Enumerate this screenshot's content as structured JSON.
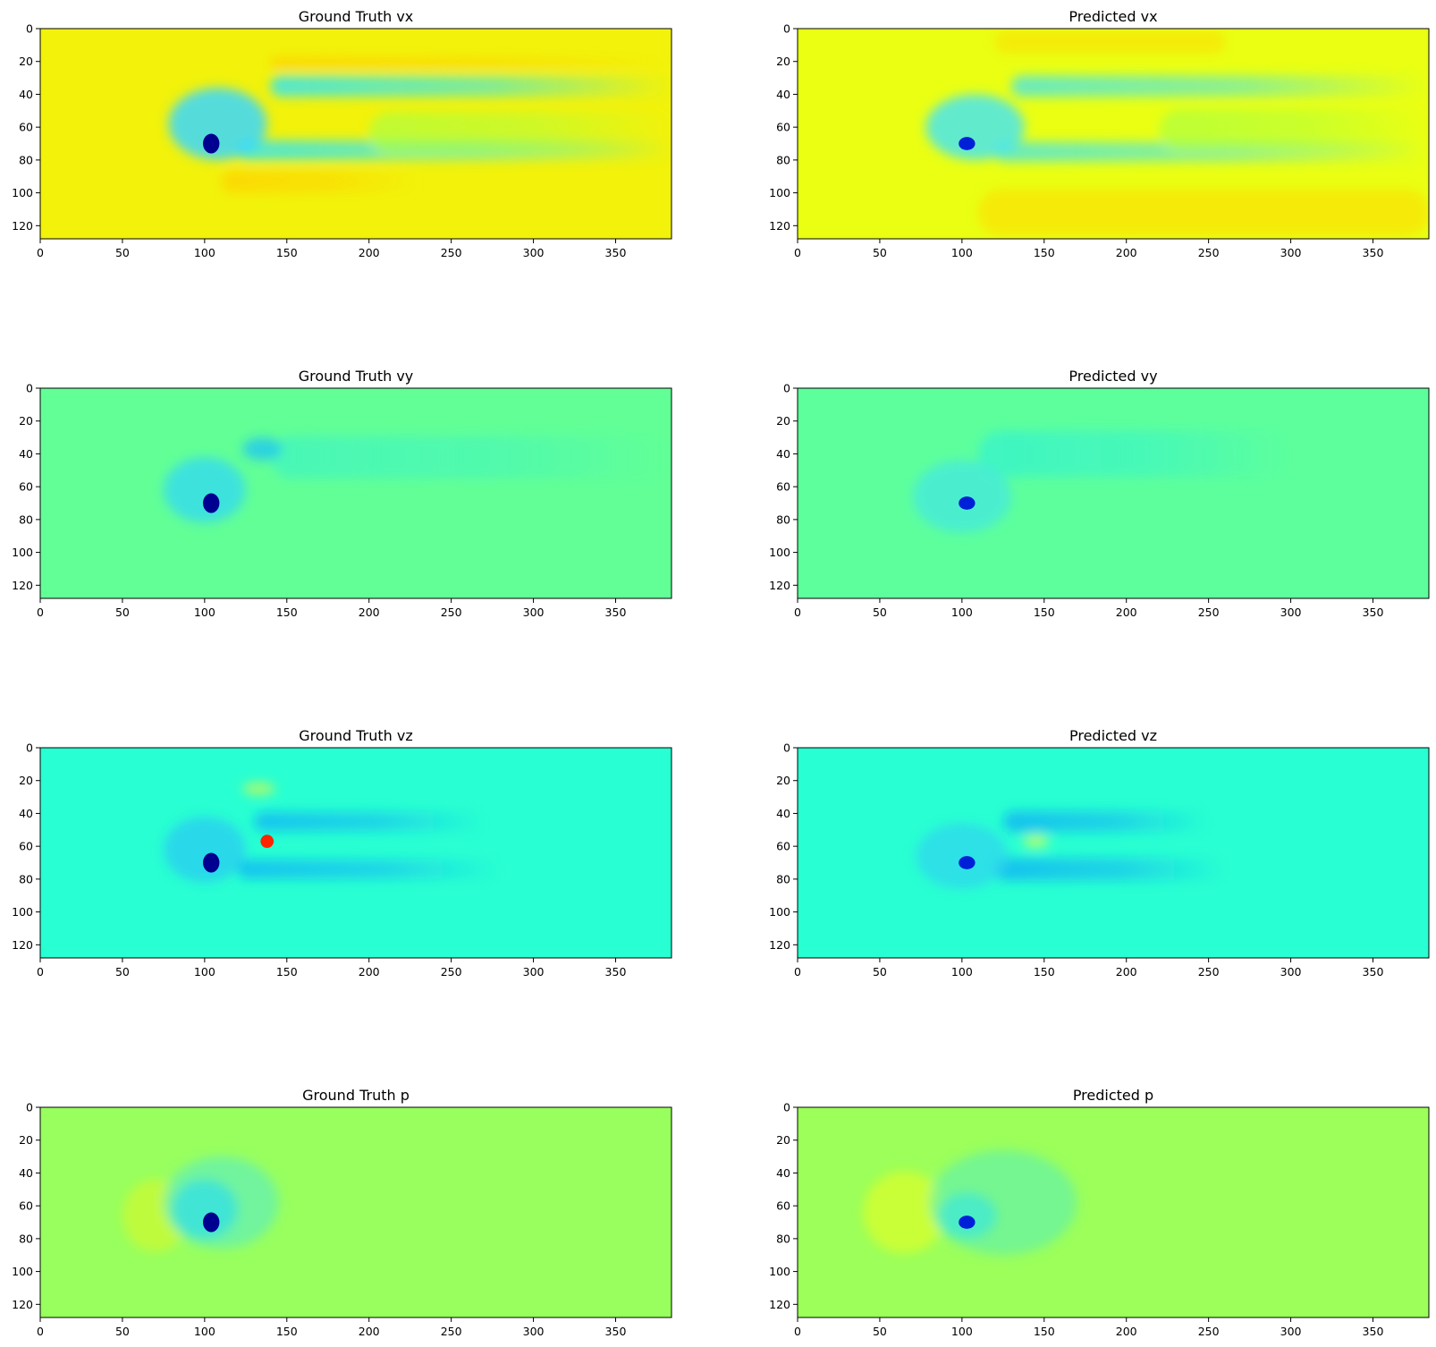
{
  "chart_data": [
    {
      "type": "heatmap",
      "title": "Ground Truth vx",
      "field": "vx",
      "source": "ground_truth",
      "xlim": [
        0,
        384
      ],
      "ylim": [
        128,
        0
      ],
      "xticks": [
        0,
        50,
        100,
        150,
        200,
        250,
        300,
        350
      ],
      "yticks": [
        0,
        20,
        40,
        60,
        80,
        100,
        120
      ],
      "colormap": "jet",
      "background_color": "#f2f20a",
      "features": [
        {
          "kind": "band",
          "x0": 140,
          "x1": 384,
          "y": 35,
          "h": 13,
          "color": "#36e6f0",
          "opacity": 0.85,
          "fade": true
        },
        {
          "kind": "band",
          "x0": 120,
          "x1": 384,
          "y": 74,
          "h": 12,
          "color": "#36e6f0",
          "opacity": 0.85,
          "fade": true
        },
        {
          "kind": "band",
          "x0": 140,
          "x1": 384,
          "y": 21,
          "h": 7,
          "color": "#ffd000",
          "opacity": 0.8,
          "fade": true
        },
        {
          "kind": "band",
          "x0": 110,
          "x1": 230,
          "y": 93,
          "h": 14,
          "color": "#ffd000",
          "opacity": 0.7,
          "fade": true
        },
        {
          "kind": "band",
          "x0": 200,
          "x1": 384,
          "y": 64,
          "h": 26,
          "color": "#aaff44",
          "opacity": 0.7,
          "fade": true
        },
        {
          "kind": "blob",
          "x": 108,
          "y": 58,
          "rx": 30,
          "ry": 22,
          "color": "#3ad8ff",
          "opacity": 0.85
        },
        {
          "kind": "blob",
          "x": 104,
          "y": 70,
          "rx": 5,
          "ry": 6,
          "color": "#000090",
          "opacity": 1
        }
      ]
    },
    {
      "type": "heatmap",
      "title": "Predicted vx",
      "field": "vx",
      "source": "predicted",
      "xlim": [
        0,
        384
      ],
      "ylim": [
        128,
        0
      ],
      "xticks": [
        0,
        50,
        100,
        150,
        200,
        250,
        300,
        350
      ],
      "yticks": [
        0,
        20,
        40,
        60,
        80,
        100,
        120
      ],
      "colormap": "jet",
      "background_color": "#eaff12",
      "features": [
        {
          "kind": "band",
          "x0": 130,
          "x1": 384,
          "y": 35,
          "h": 13,
          "color": "#4ae6e6",
          "opacity": 0.8,
          "fade": true
        },
        {
          "kind": "band",
          "x0": 120,
          "x1": 384,
          "y": 75,
          "h": 12,
          "color": "#4ae6e6",
          "opacity": 0.8,
          "fade": true
        },
        {
          "kind": "band",
          "x0": 110,
          "x1": 384,
          "y": 112,
          "h": 28,
          "color": "#ffd800",
          "opacity": 0.55,
          "fade": false
        },
        {
          "kind": "band",
          "x0": 120,
          "x1": 260,
          "y": 8,
          "h": 14,
          "color": "#ffd800",
          "opacity": 0.5,
          "fade": false
        },
        {
          "kind": "band",
          "x0": 220,
          "x1": 384,
          "y": 62,
          "h": 26,
          "color": "#aaff44",
          "opacity": 0.7,
          "fade": true
        },
        {
          "kind": "blob",
          "x": 108,
          "y": 60,
          "rx": 30,
          "ry": 20,
          "color": "#4ae6ee",
          "opacity": 0.85
        },
        {
          "kind": "blob",
          "x": 103,
          "y": 70,
          "rx": 5,
          "ry": 4,
          "color": "#0020d8",
          "opacity": 1
        }
      ]
    },
    {
      "type": "heatmap",
      "title": "Ground Truth vy",
      "field": "vy",
      "source": "ground_truth",
      "xlim": [
        0,
        384
      ],
      "ylim": [
        128,
        0
      ],
      "xticks": [
        0,
        50,
        100,
        150,
        200,
        250,
        300,
        350
      ],
      "yticks": [
        0,
        20,
        40,
        60,
        80,
        100,
        120
      ],
      "colormap": "jet",
      "background_color": "#62ff96",
      "features": [
        {
          "kind": "band",
          "x0": 140,
          "x1": 384,
          "y": 42,
          "h": 26,
          "color": "#3ef4c4",
          "opacity": 0.7,
          "fade": true
        },
        {
          "kind": "blob",
          "x": 135,
          "y": 37,
          "rx": 12,
          "ry": 7,
          "color": "#20c8f0",
          "opacity": 0.8
        },
        {
          "kind": "blob",
          "x": 100,
          "y": 62,
          "rx": 25,
          "ry": 20,
          "color": "#30d8f4",
          "opacity": 0.75
        },
        {
          "kind": "blob",
          "x": 104,
          "y": 70,
          "rx": 5,
          "ry": 6,
          "color": "#000090",
          "opacity": 1
        }
      ]
    },
    {
      "type": "heatmap",
      "title": "Predicted vy",
      "field": "vy",
      "source": "predicted",
      "xlim": [
        0,
        384
      ],
      "ylim": [
        128,
        0
      ],
      "xticks": [
        0,
        50,
        100,
        150,
        200,
        250,
        300,
        350
      ],
      "yticks": [
        0,
        20,
        40,
        60,
        80,
        100,
        120
      ],
      "colormap": "jet",
      "background_color": "#5dff9c",
      "features": [
        {
          "kind": "band",
          "x0": 110,
          "x1": 300,
          "y": 40,
          "h": 28,
          "color": "#32f2d2",
          "opacity": 0.7,
          "fade": true
        },
        {
          "kind": "blob",
          "x": 100,
          "y": 66,
          "rx": 30,
          "ry": 22,
          "color": "#44e8e0",
          "opacity": 0.75
        },
        {
          "kind": "blob",
          "x": 103,
          "y": 70,
          "rx": 5,
          "ry": 4,
          "color": "#0020d8",
          "opacity": 1
        }
      ]
    },
    {
      "type": "heatmap",
      "title": "Ground Truth vz",
      "field": "vz",
      "source": "ground_truth",
      "xlim": [
        0,
        384
      ],
      "ylim": [
        128,
        0
      ],
      "xticks": [
        0,
        50,
        100,
        150,
        200,
        250,
        300,
        350
      ],
      "yticks": [
        0,
        20,
        40,
        60,
        80,
        100,
        120
      ],
      "colormap": "jet",
      "background_color": "#28ffd2",
      "features": [
        {
          "kind": "band",
          "x0": 130,
          "x1": 270,
          "y": 45,
          "h": 12,
          "color": "#14b8f4",
          "opacity": 0.8,
          "fade": true
        },
        {
          "kind": "band",
          "x0": 120,
          "x1": 280,
          "y": 74,
          "h": 12,
          "color": "#14b8f4",
          "opacity": 0.8,
          "fade": true
        },
        {
          "kind": "blob",
          "x": 133,
          "y": 25,
          "rx": 10,
          "ry": 4,
          "color": "#d8f84a",
          "opacity": 0.7
        },
        {
          "kind": "blob",
          "x": 138,
          "y": 57,
          "rx": 4,
          "ry": 4,
          "color": "#ff2400",
          "opacity": 1
        },
        {
          "kind": "blob",
          "x": 100,
          "y": 62,
          "rx": 25,
          "ry": 20,
          "color": "#28c8f4",
          "opacity": 0.7
        },
        {
          "kind": "blob",
          "x": 104,
          "y": 70,
          "rx": 5,
          "ry": 6,
          "color": "#000090",
          "opacity": 1
        }
      ]
    },
    {
      "type": "heatmap",
      "title": "Predicted vz",
      "field": "vz",
      "source": "predicted",
      "xlim": [
        0,
        384
      ],
      "ylim": [
        128,
        0
      ],
      "xticks": [
        0,
        50,
        100,
        150,
        200,
        250,
        300,
        350
      ],
      "yticks": [
        0,
        20,
        40,
        60,
        80,
        100,
        120
      ],
      "colormap": "jet",
      "background_color": "#28ffd2",
      "features": [
        {
          "kind": "band",
          "x0": 125,
          "x1": 250,
          "y": 45,
          "h": 13,
          "color": "#14b4f4",
          "opacity": 0.8,
          "fade": true
        },
        {
          "kind": "band",
          "x0": 120,
          "x1": 260,
          "y": 74,
          "h": 14,
          "color": "#14b4f4",
          "opacity": 0.8,
          "fade": true
        },
        {
          "kind": "blob",
          "x": 145,
          "y": 57,
          "rx": 8,
          "ry": 4,
          "color": "#c8ff60",
          "opacity": 0.8
        },
        {
          "kind": "blob",
          "x": 100,
          "y": 66,
          "rx": 28,
          "ry": 20,
          "color": "#30d4f0",
          "opacity": 0.7
        },
        {
          "kind": "blob",
          "x": 103,
          "y": 70,
          "rx": 5,
          "ry": 4,
          "color": "#0020d8",
          "opacity": 1
        }
      ]
    },
    {
      "type": "heatmap",
      "title": "Ground Truth p",
      "field": "p",
      "source": "ground_truth",
      "xlim": [
        0,
        384
      ],
      "ylim": [
        128,
        0
      ],
      "xticks": [
        0,
        50,
        100,
        150,
        200,
        250,
        300,
        350
      ],
      "yticks": [
        0,
        20,
        40,
        60,
        80,
        100,
        120
      ],
      "colormap": "jet",
      "background_color": "#98ff5e",
      "features": [
        {
          "kind": "blob",
          "x": 70,
          "y": 66,
          "rx": 20,
          "ry": 22,
          "color": "#d8f82a",
          "opacity": 0.6
        },
        {
          "kind": "blob",
          "x": 110,
          "y": 58,
          "rx": 35,
          "ry": 28,
          "color": "#60f0b8",
          "opacity": 0.7
        },
        {
          "kind": "blob",
          "x": 100,
          "y": 62,
          "rx": 20,
          "ry": 18,
          "color": "#30e0e8",
          "opacity": 0.75
        },
        {
          "kind": "blob",
          "x": 104,
          "y": 70,
          "rx": 5,
          "ry": 6,
          "color": "#000090",
          "opacity": 1
        }
      ]
    },
    {
      "type": "heatmap",
      "title": "Predicted p",
      "field": "p",
      "source": "predicted",
      "xlim": [
        0,
        384
      ],
      "ylim": [
        128,
        0
      ],
      "xticks": [
        0,
        50,
        100,
        150,
        200,
        250,
        300,
        350
      ],
      "yticks": [
        0,
        20,
        40,
        60,
        80,
        100,
        120
      ],
      "colormap": "jet",
      "background_color": "#9cff5a",
      "features": [
        {
          "kind": "blob",
          "x": 65,
          "y": 64,
          "rx": 25,
          "ry": 25,
          "color": "#e8ff20",
          "opacity": 0.6
        },
        {
          "kind": "blob",
          "x": 125,
          "y": 58,
          "rx": 45,
          "ry": 32,
          "color": "#5af0b4",
          "opacity": 0.6
        },
        {
          "kind": "blob",
          "x": 103,
          "y": 66,
          "rx": 18,
          "ry": 14,
          "color": "#40e8d8",
          "opacity": 0.75
        },
        {
          "kind": "blob",
          "x": 103,
          "y": 70,
          "rx": 5,
          "ry": 4,
          "color": "#0020d8",
          "opacity": 1
        }
      ]
    }
  ]
}
